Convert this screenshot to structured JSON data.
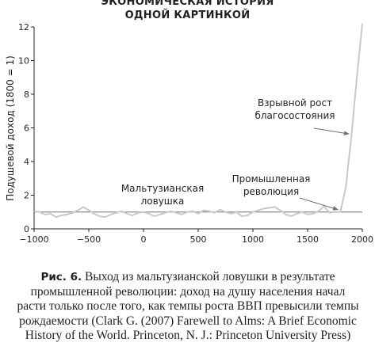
{
  "chart_data": {
    "type": "line",
    "title_lines": [
      "ЭКОНОМИЧЕСКАЯ ИСТОРИЯ",
      "ОДНОЙ КАРТИНКОЙ"
    ],
    "xlabel": "",
    "ylabel": "Подушевой доход (1800 = 1)",
    "xlim": [
      -1000,
      2000
    ],
    "ylim": [
      0,
      12
    ],
    "xticks": [
      -1000,
      -500,
      0,
      500,
      1000,
      1500,
      2000
    ],
    "xtick_labels": [
      "−1000",
      "−500",
      "0",
      "500",
      "1000",
      "1500",
      "2000"
    ],
    "yticks": [
      0,
      2,
      4,
      6,
      8,
      10,
      12
    ],
    "ytick_labels": [
      "0",
      "2",
      "4",
      "6",
      "8",
      "10",
      "12"
    ],
    "grid": false,
    "reference_line": 1,
    "series": [
      {
        "x": [
          -1000,
          -950,
          -900,
          -850,
          -800,
          -750,
          -700,
          -650,
          -600,
          -550,
          -500,
          -450,
          -400,
          -350,
          -300,
          -250,
          -200,
          -150,
          -100,
          -50,
          0,
          50,
          100,
          150,
          200,
          250,
          300,
          350,
          400,
          450,
          500,
          550,
          600,
          650,
          700,
          750,
          800,
          850,
          900,
          950,
          1000,
          1050,
          1100,
          1150,
          1200,
          1250,
          1300,
          1350,
          1400,
          1450,
          1500,
          1550,
          1600,
          1650,
          1700,
          1750,
          1800,
          1850,
          1900,
          1950,
          2000
        ],
        "y": [
          1.05,
          1.0,
          0.85,
          0.9,
          0.7,
          0.8,
          0.85,
          0.95,
          1.1,
          1.3,
          1.1,
          0.9,
          0.75,
          0.7,
          0.85,
          0.95,
          1.05,
          0.9,
          0.8,
          0.95,
          1.0,
          0.9,
          0.75,
          0.85,
          0.95,
          1.05,
          0.95,
          0.85,
          1.0,
          1.05,
          0.9,
          1.1,
          1.05,
          0.95,
          1.15,
          1.0,
          0.9,
          1.0,
          0.75,
          0.8,
          1.0,
          1.1,
          1.2,
          1.25,
          1.3,
          1.1,
          0.85,
          0.75,
          0.9,
          1.0,
          0.85,
          0.9,
          1.05,
          1.35,
          0.95,
          1.0,
          1.0,
          2.5,
          5.5,
          9.0,
          12.2
        ]
      }
    ],
    "annotations": [
      {
        "text": [
          "Мальтузианская",
          "ловушка"
        ]
      },
      {
        "text": [
          "Промышленная",
          "революция"
        ],
        "arrow_to": [
          1800,
          1.0
        ]
      },
      {
        "text": [
          "Взрывной рост",
          "благосостояния"
        ],
        "arrow_to": [
          1900,
          5.5
        ]
      }
    ]
  },
  "caption": {
    "lead": "Рис. 6.",
    "lines": [
      "Выход из мальтузианской ловушки в результате",
      "промышленной революции: доход на душу населения начал",
      "расти только после того, как темпы роста ВВП превысили темпы",
      "рождаемости (Clark G. (2007) Farewell to Alms: A Brief Economic",
      "History of the World. Princeton, N. J.: Princeton University Press)"
    ]
  },
  "colors": {
    "series": "#c9c9c9",
    "reference": "#6d6e71",
    "axis": "#231f20",
    "text": "#231f20"
  }
}
